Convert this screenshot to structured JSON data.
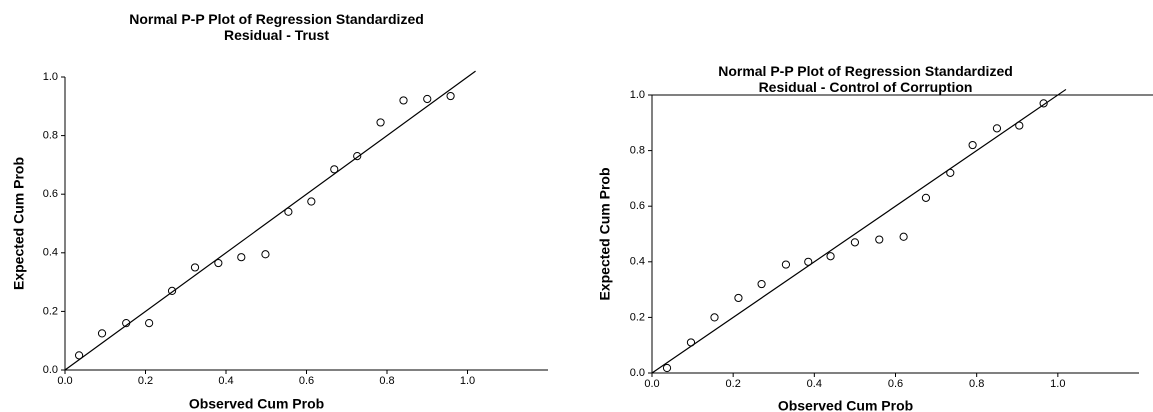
{
  "chart_data": [
    {
      "type": "scatter",
      "title": "Normal P-P Plot of Regression Standardized\nResidual - Trust",
      "x_label": "Observed Cum Prob",
      "y_label": "Expected Cum Prob",
      "x": [
        0.035,
        0.092,
        0.152,
        0.209,
        0.266,
        0.323,
        0.381,
        0.438,
        0.498,
        0.555,
        0.612,
        0.669,
        0.726,
        0.784,
        0.841,
        0.9,
        0.958
      ],
      "values": [
        0.05,
        0.125,
        0.16,
        0.16,
        0.27,
        0.35,
        0.365,
        0.385,
        0.395,
        0.54,
        0.575,
        0.685,
        0.73,
        0.845,
        0.92,
        0.925,
        0.935
      ],
      "xlim": [
        0,
        1.2
      ],
      "ylim": [
        0,
        1
      ],
      "xticks": [
        {
          "value": 0,
          "label": "0.0"
        },
        {
          "value": 0.2,
          "label": "0.2"
        },
        {
          "value": 0.4,
          "label": "0.4"
        },
        {
          "value": 0.6,
          "label": "0.6"
        },
        {
          "value": 0.8,
          "label": "0.8"
        },
        {
          "value": 1,
          "label": "1.0"
        }
      ],
      "yticks": [
        {
          "value": 0,
          "label": "0.0"
        },
        {
          "value": 0.2,
          "label": "0.2"
        },
        {
          "value": 0.4,
          "label": "0.4"
        },
        {
          "value": 0.6,
          "label": "0.6"
        },
        {
          "value": 0.8,
          "label": "0.8"
        },
        {
          "value": 1,
          "label": "1.0"
        }
      ]
    },
    {
      "type": "scatter",
      "title": "Normal P-P Plot of Regression Standardized\nResidual  - Control of Corruption",
      "x_label": "Observed Cum Prob",
      "y_label": "Expected Cum Prob",
      "x": [
        0.037,
        0.096,
        0.154,
        0.213,
        0.27,
        0.33,
        0.385,
        0.44,
        0.5,
        0.56,
        0.62,
        0.675,
        0.735,
        0.79,
        0.85,
        0.905,
        0.965
      ],
      "values": [
        0.018,
        0.11,
        0.2,
        0.27,
        0.32,
        0.39,
        0.4,
        0.42,
        0.47,
        0.48,
        0.49,
        0.63,
        0.72,
        0.82,
        0.88,
        0.89,
        0.97
      ],
      "xlim": [
        0,
        1.2
      ],
      "ylim": [
        0,
        1
      ],
      "xticks": [
        {
          "value": 0,
          "label": "0.0"
        },
        {
          "value": 0.2,
          "label": "0.2"
        },
        {
          "value": 0.4,
          "label": "0.4"
        },
        {
          "value": 0.6,
          "label": "0.6"
        },
        {
          "value": 0.8,
          "label": "0.8"
        },
        {
          "value": 1,
          "label": "1.0"
        }
      ],
      "yticks": [
        {
          "value": 0,
          "label": "0.0"
        },
        {
          "value": 0.2,
          "label": "0.2"
        },
        {
          "value": 0.4,
          "label": "0.4"
        },
        {
          "value": 0.6,
          "label": "0.6"
        },
        {
          "value": 0.8,
          "label": "0.8"
        },
        {
          "value": 1,
          "label": "1.0"
        }
      ]
    }
  ]
}
